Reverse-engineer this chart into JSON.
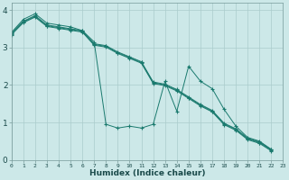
{
  "xlabel": "Humidex (Indice chaleur)",
  "ylabel": "",
  "bg_color": "#cce8e8",
  "grid_color": "#aacccc",
  "line_color": "#1a7a6e",
  "s1": [
    3.4,
    3.75,
    3.9,
    3.65,
    3.6,
    3.55,
    3.45,
    3.15,
    0.95,
    0.85,
    0.9,
    0.85,
    0.95,
    2.1,
    1.3,
    2.5,
    2.1,
    1.9,
    1.35,
    0.9,
    0.6,
    0.5,
    0.28
  ],
  "s2": [
    3.38,
    3.7,
    3.85,
    3.6,
    3.55,
    3.5,
    3.45,
    3.1,
    3.05,
    2.88,
    2.75,
    2.62,
    2.08,
    2.02,
    1.88,
    1.68,
    1.48,
    1.32,
    0.98,
    0.83,
    0.58,
    0.48,
    0.28
  ],
  "s3": [
    3.36,
    3.68,
    3.83,
    3.58,
    3.53,
    3.48,
    3.43,
    3.08,
    3.03,
    2.86,
    2.73,
    2.6,
    2.06,
    2.0,
    1.86,
    1.66,
    1.46,
    1.3,
    0.96,
    0.81,
    0.56,
    0.46,
    0.26
  ],
  "s4": [
    3.34,
    3.66,
    3.81,
    3.56,
    3.51,
    3.46,
    3.41,
    3.06,
    3.01,
    2.84,
    2.71,
    2.58,
    2.04,
    1.98,
    1.84,
    1.64,
    1.44,
    1.28,
    0.94,
    0.79,
    0.54,
    0.44,
    0.24
  ],
  "xlim": [
    0,
    23
  ],
  "ylim": [
    0,
    4.2
  ],
  "xticks": [
    0,
    1,
    2,
    3,
    4,
    5,
    6,
    7,
    8,
    9,
    10,
    11,
    12,
    13,
    14,
    15,
    16,
    17,
    18,
    19,
    20,
    21,
    22,
    23
  ],
  "yticks": [
    0,
    1,
    2,
    3,
    4
  ],
  "figsize": [
    3.2,
    2.0
  ],
  "dpi": 100
}
